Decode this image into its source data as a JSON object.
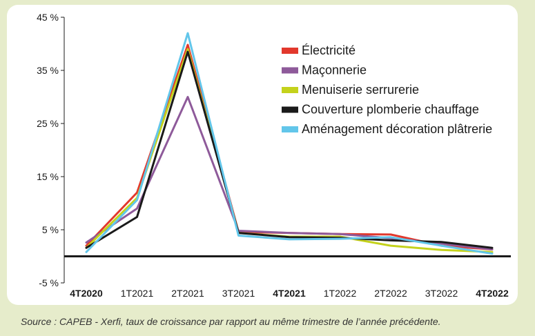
{
  "chart_data": {
    "type": "line",
    "categories": [
      "4T2020",
      "1T2021",
      "2T2021",
      "3T2021",
      "4T2021",
      "1T2022",
      "2T2022",
      "3T2022",
      "4T2022"
    ],
    "bold_categories": [
      "4T2020",
      "4T2021",
      "4T2022"
    ],
    "y_ticks": [
      "45 %",
      "35 %",
      "25 %",
      "15 %",
      "5 %",
      "-5 %"
    ],
    "ylim": [
      -5,
      45
    ],
    "grid": false,
    "legend_position": "top-right",
    "series": [
      {
        "name": "Électricité",
        "color": "#e2382c",
        "values": [
          2.0,
          12.0,
          39.8,
          4.6,
          4.4,
          4.2,
          4.1,
          2.0,
          1.3
        ]
      },
      {
        "name": "Maçonnerie",
        "color": "#8e5a9a",
        "values": [
          2.6,
          9.0,
          30.0,
          4.8,
          4.4,
          4.2,
          3.4,
          2.4,
          1.3
        ]
      },
      {
        "name": "Menuiserie serrurerie",
        "color": "#c4d21c",
        "values": [
          1.6,
          11.0,
          39.0,
          4.4,
          3.7,
          3.7,
          2.0,
          1.2,
          0.8
        ]
      },
      {
        "name": "Couverture plomberie chauffage",
        "color": "#1a1a1a",
        "values": [
          1.6,
          7.4,
          38.5,
          4.4,
          3.6,
          3.5,
          3.0,
          2.7,
          1.6
        ]
      },
      {
        "name": "Aménagement décoration plâtrerie",
        "color": "#62c6ea",
        "values": [
          0.8,
          10.6,
          42.0,
          3.9,
          3.2,
          3.3,
          3.6,
          2.0,
          0.5
        ]
      }
    ]
  },
  "source": "Source : CAPEB - Xerfi, taux de croissance par rapport au même trimestre de l’année précédente."
}
